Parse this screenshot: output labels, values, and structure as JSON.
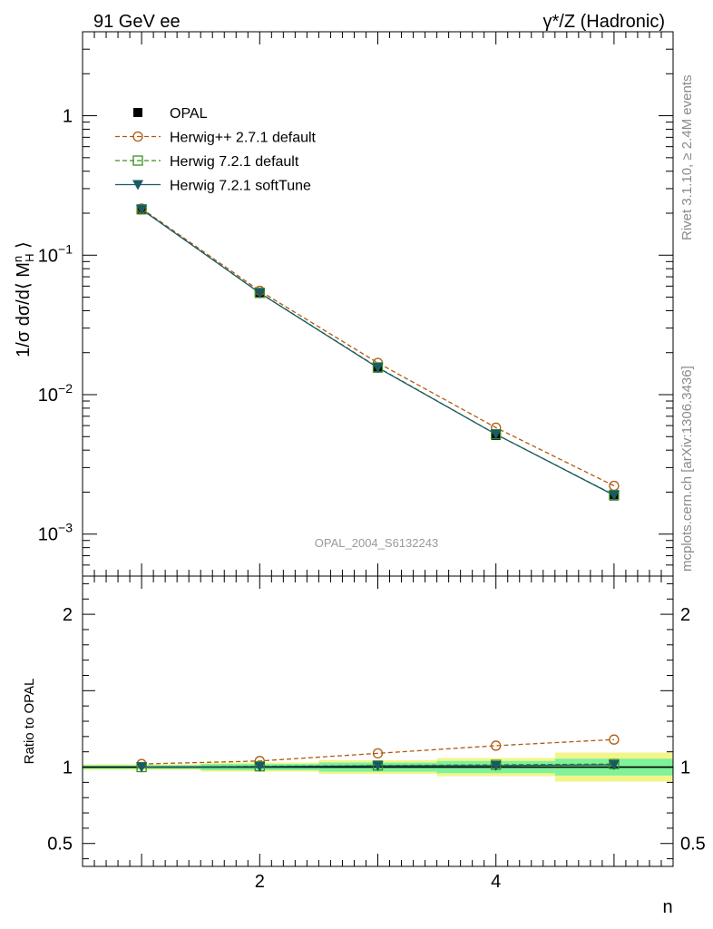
{
  "header": {
    "left": "91 GeV ee",
    "right": "γ*/Z (Hadronic)"
  },
  "side_labels": {
    "rivet": "Rivet 3.1.10, ≥ 2.4M events",
    "mcplots": "mcplots.cern.ch [arXiv:1306.3436]"
  },
  "watermark": "OPAL_2004_S6132243",
  "colors": {
    "opal": "#000000",
    "herwigpp": "#b05a10",
    "herwig721": "#3b8f1f",
    "softtune": "#1a5a66",
    "band_inner": "#7ff29a",
    "band_outer": "#f2f58c"
  },
  "chart_data": [
    {
      "type": "line",
      "panel": "main",
      "ylabel": "1/σ dσ/d⟨ M_H^n ⟩",
      "xlabel": "n",
      "yscale": "log",
      "xlim": [
        0.5,
        5.5
      ],
      "ylim": [
        0.0005,
        4
      ],
      "yticks": [
        {
          "value": 1,
          "label": "1"
        },
        {
          "value": 0.1,
          "label": "10^-1"
        },
        {
          "value": 0.01,
          "label": "10^-2"
        },
        {
          "value": 0.001,
          "label": "10^-3"
        }
      ],
      "legend_position": "top-left",
      "x": [
        1,
        2,
        3,
        4,
        5
      ],
      "series": [
        {
          "name": "OPAL",
          "marker": "square-filled",
          "values": [
            0.212,
            0.0535,
            0.0155,
            0.0051,
            0.00188
          ]
        },
        {
          "name": "Herwig++ 2.7.1 default",
          "marker": "circle-open",
          "line": "dashed",
          "values": [
            0.216,
            0.0555,
            0.0169,
            0.0058,
            0.00222
          ]
        },
        {
          "name": "Herwig 7.2.1 default",
          "marker": "square-open",
          "line": "dashed",
          "values": [
            0.213,
            0.0537,
            0.0157,
            0.0052,
            0.00191
          ]
        },
        {
          "name": "Herwig 7.2.1 softTune",
          "marker": "triangle-down-filled",
          "line": "solid",
          "values": [
            0.213,
            0.0536,
            0.0156,
            0.0052,
            0.0019
          ]
        }
      ]
    },
    {
      "type": "line",
      "panel": "ratio",
      "ylabel": "Ratio to OPAL",
      "xlabel": "n",
      "xlim": [
        0.5,
        5.5
      ],
      "ylim": [
        0.35,
        2.25
      ],
      "yticks": [
        {
          "value": 0.5,
          "label": "0.5"
        },
        {
          "value": 1,
          "label": "1"
        },
        {
          "value": 2,
          "label": "2"
        }
      ],
      "xticks": [
        {
          "value": 2,
          "label": "2"
        },
        {
          "value": 4,
          "label": "4"
        }
      ],
      "x": [
        1,
        2,
        3,
        4,
        5
      ],
      "bands": {
        "inner": [
          0.012,
          0.02,
          0.03,
          0.04,
          0.055
        ],
        "outer": [
          0.018,
          0.03,
          0.045,
          0.06,
          0.095
        ]
      },
      "series": [
        {
          "name": "Herwig++ 2.7.1 default",
          "marker": "circle-open",
          "line": "dashed",
          "values": [
            1.02,
            1.04,
            1.09,
            1.14,
            1.18
          ]
        },
        {
          "name": "Herwig 7.2.1 default",
          "marker": "square-open",
          "line": "dashed",
          "values": [
            1.0,
            1.005,
            1.01,
            1.015,
            1.02
          ]
        },
        {
          "name": "Herwig 7.2.1 softTune",
          "marker": "triangle-down-filled",
          "line": "solid",
          "values": [
            1.0,
            1.003,
            1.008,
            1.01,
            1.015
          ]
        }
      ]
    }
  ]
}
